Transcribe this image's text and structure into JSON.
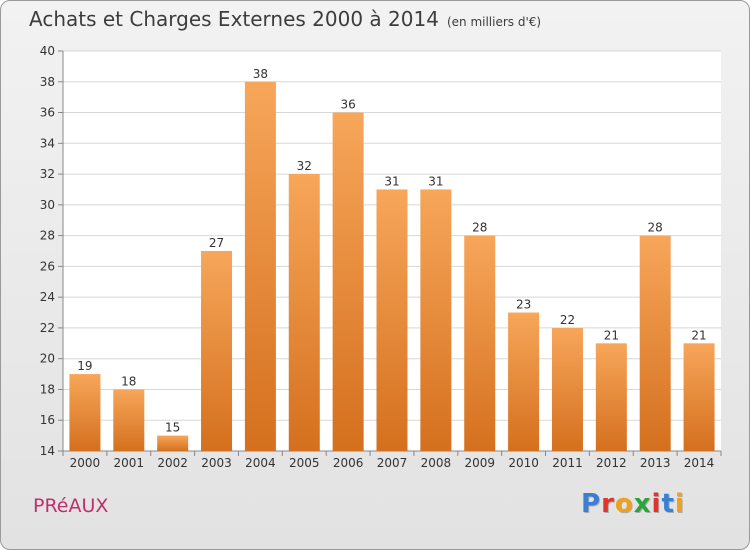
{
  "header": {
    "title": "Achats et Charges Externes 2000 à 2014",
    "subtitle": "(en milliers d'€)"
  },
  "footer": {
    "town": "PRéAUX",
    "logo": "Proxiti",
    "logo_colors": [
      "#3a7fd4",
      "#e0342f",
      "#f0a020",
      "#2aa53c",
      "#e0342f",
      "#3a7fd4",
      "#f0a020"
    ]
  },
  "chart_data": {
    "type": "bar",
    "categories": [
      "2000",
      "2001",
      "2002",
      "2003",
      "2004",
      "2005",
      "2006",
      "2007",
      "2008",
      "2009",
      "2010",
      "2011",
      "2012",
      "2013",
      "2014"
    ],
    "values": [
      19,
      18,
      15,
      27,
      38,
      32,
      36,
      31,
      31,
      28,
      23,
      22,
      21,
      28,
      21
    ],
    "ylim": [
      14,
      40
    ],
    "yticks": [
      14,
      16,
      18,
      20,
      22,
      24,
      26,
      28,
      30,
      32,
      34,
      36,
      38,
      40
    ],
    "grid": true,
    "bar_color_top": "#f7a65a",
    "bar_color_bottom": "#d4701e"
  }
}
